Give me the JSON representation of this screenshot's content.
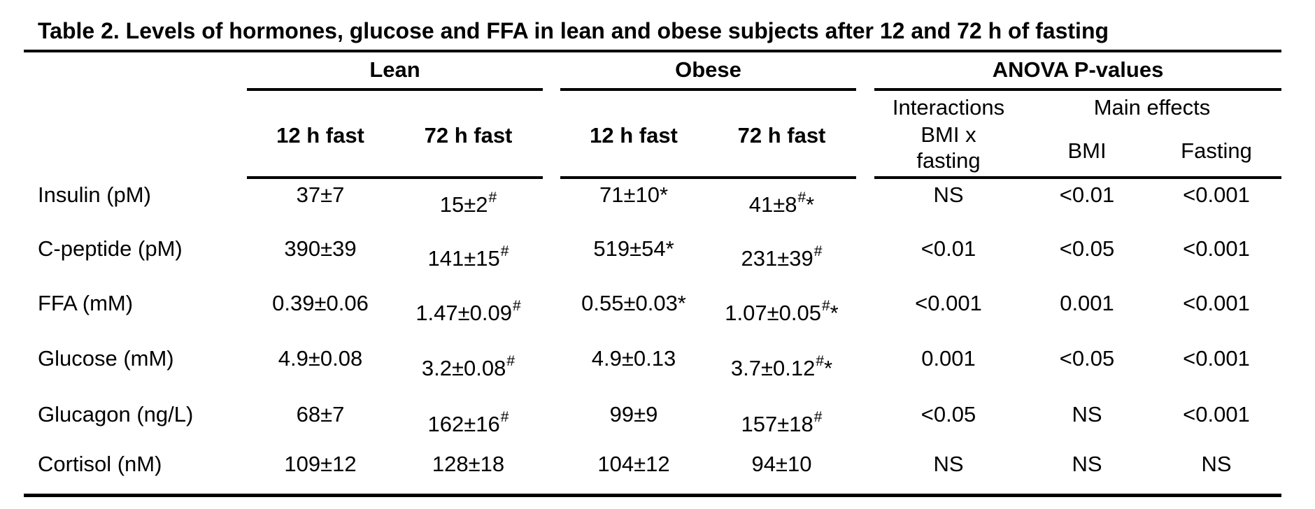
{
  "title": "Table 2. Levels of hormones, glucose and FFA in lean and obese subjects after 12 and 72 h of fasting",
  "groups": {
    "lean": "Lean",
    "obese": "Obese",
    "anova": "ANOVA P-values"
  },
  "subheaders": {
    "lean_12": "12 h fast",
    "lean_72": "72 h fast",
    "obese_12": "12 h fast",
    "obese_72": "72 h fast",
    "interactions": "Interactions",
    "interactions_line2": "BMI x",
    "interactions_line3": "fasting",
    "main_effects": "Main effects",
    "bmi": "BMI",
    "fasting": "Fasting"
  },
  "rows": [
    {
      "label": "Insulin (pM)",
      "lean12": "37±7",
      "lean72": "15±2",
      "lean72_mark": "#",
      "obese12": "71±10*",
      "obese72": "41±8",
      "obese72_mark": "#",
      "obese72_star": "*",
      "inter": "NS",
      "bmi": "<0.01",
      "fast": "<0.001"
    },
    {
      "label": "C-peptide (pM)",
      "lean12": "390±39",
      "lean72": "141±15",
      "lean72_mark": "#",
      "obese12": "519±54*",
      "obese72": "231±39",
      "obese72_mark": "#",
      "obese72_star": "",
      "inter": "<0.01",
      "bmi": "<0.05",
      "fast": "<0.001"
    },
    {
      "label": "FFA (mM)",
      "lean12": "0.39±0.06",
      "lean72": "1.47±0.09",
      "lean72_mark": "#",
      "obese12": "0.55±0.03*",
      "obese72": "1.07±0.05",
      "obese72_mark": "#",
      "obese72_star": "*",
      "inter": "<0.001",
      "bmi": "0.001",
      "fast": "<0.001"
    },
    {
      "label": "Glucose (mM)",
      "lean12": "4.9±0.08",
      "lean72": "3.2±0.08",
      "lean72_mark": "#",
      "obese12": "4.9±0.13",
      "obese72": "3.7±0.12",
      "obese72_mark": "#",
      "obese72_star": "*",
      "inter": "0.001",
      "bmi": "<0.05",
      "fast": "<0.001"
    },
    {
      "label": "Glucagon (ng/L)",
      "lean12": "68±7",
      "lean72": "162±16",
      "lean72_mark": "#",
      "obese12": "99±9",
      "obese72": "157±18",
      "obese72_mark": "#",
      "obese72_star": "",
      "inter": "<0.05",
      "bmi": "NS",
      "fast": "<0.001"
    },
    {
      "label": "Cortisol (nM)",
      "lean12": "109±12",
      "lean72": "128±18",
      "lean72_mark": "",
      "obese12": "104±12",
      "obese72": "94±10",
      "obese72_mark": "",
      "obese72_star": "",
      "inter": "NS",
      "bmi": "NS",
      "fast": "NS"
    }
  ]
}
